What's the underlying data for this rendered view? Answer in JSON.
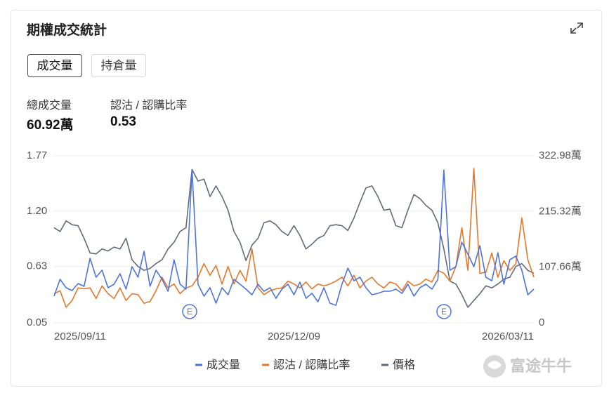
{
  "header": {
    "title": "期權成交統計"
  },
  "tabs": [
    "成交量",
    "持倉量"
  ],
  "stats": [
    {
      "label": "總成交量",
      "value": "60.92萬"
    },
    {
      "label": "認沽 / 認購比率",
      "value": "0.53"
    }
  ],
  "watermark": "富途牛牛",
  "chart_data": {
    "type": "line",
    "categories": [
      "2025/09/11",
      null,
      null,
      null,
      null,
      null,
      null,
      null,
      null,
      null,
      null,
      null,
      null,
      null,
      null,
      null,
      null,
      null,
      null,
      null,
      null,
      null,
      null,
      null,
      null,
      null,
      null,
      null,
      null,
      null,
      null,
      null,
      null,
      null,
      null,
      null,
      null,
      null,
      null,
      null,
      "2025/12/09",
      null,
      null,
      null,
      null,
      null,
      null,
      null,
      null,
      null,
      null,
      null,
      null,
      null,
      null,
      null,
      null,
      null,
      null,
      null,
      null,
      null,
      null,
      null,
      null,
      null,
      null,
      null,
      null,
      null,
      null,
      null,
      null,
      null,
      null,
      null,
      null,
      null,
      null,
      null,
      "2026/03/11"
    ],
    "series": [
      {
        "name": "成交量",
        "color": "#4f74d9",
        "axis": "y2",
        "values": [
          51.6,
          84.1,
          67.9,
          62.4,
          76.0,
          70.6,
          124.8,
          88.2,
          101.8,
          67.9,
          74.6,
          95.0,
          65.1,
          108.6,
          88.2,
          138.4,
          70.6,
          101.8,
          84.1,
          61.1,
          122.1,
          74.6,
          65.1,
          295.8,
          74.6,
          51.6,
          67.9,
          38.0,
          67.9,
          54.3,
          84.1,
          74.6,
          65.1,
          54.3,
          74.6,
          61.1,
          67.9,
          47.5,
          65.1,
          74.6,
          54.3,
          78.7,
          47.5,
          57.0,
          40.7,
          67.9,
          38.0,
          33.9,
          74.6,
          105.8,
          81.4,
          88.2,
          67.9,
          54.3,
          57.0,
          61.1,
          61.1,
          65.1,
          57.0,
          74.6,
          51.6,
          67.9,
          74.6,
          65.1,
          84.1,
          295.8,
          101.8,
          108.6,
          156.1,
          133.0,
          108.6,
          149.3,
          88.2,
          81.4,
          135.7,
          74.6,
          122.1,
          128.9,
          101.8,
          54.3,
          65.1
        ]
      },
      {
        "name": "認沽 / 認購比率",
        "color": "#e3782c",
        "values": [
          0.35,
          0.38,
          0.21,
          0.28,
          0.41,
          0.4,
          0.41,
          0.3,
          0.43,
          0.35,
          0.3,
          0.41,
          0.28,
          0.35,
          0.34,
          0.25,
          0.27,
          0.38,
          0.52,
          0.41,
          0.45,
          0.35,
          0.41,
          0.43,
          0.52,
          0.66,
          0.54,
          0.64,
          0.45,
          0.63,
          0.45,
          0.59,
          0.48,
          0.81,
          0.41,
          0.34,
          0.38,
          0.4,
          0.41,
          0.48,
          0.45,
          0.41,
          0.47,
          0.4,
          0.45,
          0.43,
          0.45,
          0.48,
          0.52,
          0.43,
          0.54,
          0.41,
          0.48,
          0.52,
          0.45,
          0.41,
          0.47,
          0.45,
          0.38,
          0.48,
          0.43,
          0.45,
          0.5,
          0.47,
          0.59,
          0.56,
          0.48,
          0.63,
          1.03,
          0.59,
          1.64,
          0.56,
          0.57,
          0.77,
          0.52,
          0.69,
          0.59,
          0.66,
          1.13,
          0.7,
          0.52
        ]
      },
      {
        "name": "價格",
        "color": "#636b78",
        "values": [
          1.03,
          0.99,
          1.1,
          1.06,
          1.05,
          0.92,
          0.77,
          0.76,
          0.81,
          0.79,
          0.83,
          0.81,
          0.92,
          0.7,
          0.63,
          0.59,
          0.61,
          0.66,
          0.7,
          0.81,
          0.88,
          0.99,
          1.03,
          1.63,
          1.51,
          1.53,
          1.35,
          1.46,
          1.35,
          1.21,
          0.99,
          0.88,
          0.69,
          0.85,
          0.92,
          1.08,
          1.1,
          1.06,
          0.99,
          0.95,
          1.05,
          0.95,
          0.81,
          0.86,
          0.92,
          0.95,
          1.05,
          1.06,
          1.05,
          1.0,
          1.13,
          1.29,
          1.44,
          1.46,
          1.35,
          1.21,
          1.22,
          1.05,
          1.03,
          1.21,
          1.37,
          1.33,
          1.26,
          1.21,
          1.08,
          0.81,
          0.48,
          0.45,
          0.34,
          0.21,
          0.28,
          0.35,
          0.43,
          0.41,
          0.45,
          0.5,
          0.52,
          0.63,
          0.66,
          0.59,
          0.56
        ]
      }
    ],
    "ylim": [
      0.05,
      1.77
    ],
    "yticks": [
      0.05,
      0.63,
      {
        "value": 1.2,
        "label": "1.20"
      },
      1.77
    ],
    "y2lim": [
      0,
      322.98
    ],
    "y2ticks": [
      0,
      {
        "value": 107.66,
        "label": "107.66萬"
      },
      {
        "value": 215.32,
        "label": "215.32萬"
      },
      {
        "value": 322.98,
        "label": "322.98萬"
      }
    ],
    "annotations": [
      "E",
      "E"
    ],
    "grid": true,
    "legend": "bottom"
  }
}
